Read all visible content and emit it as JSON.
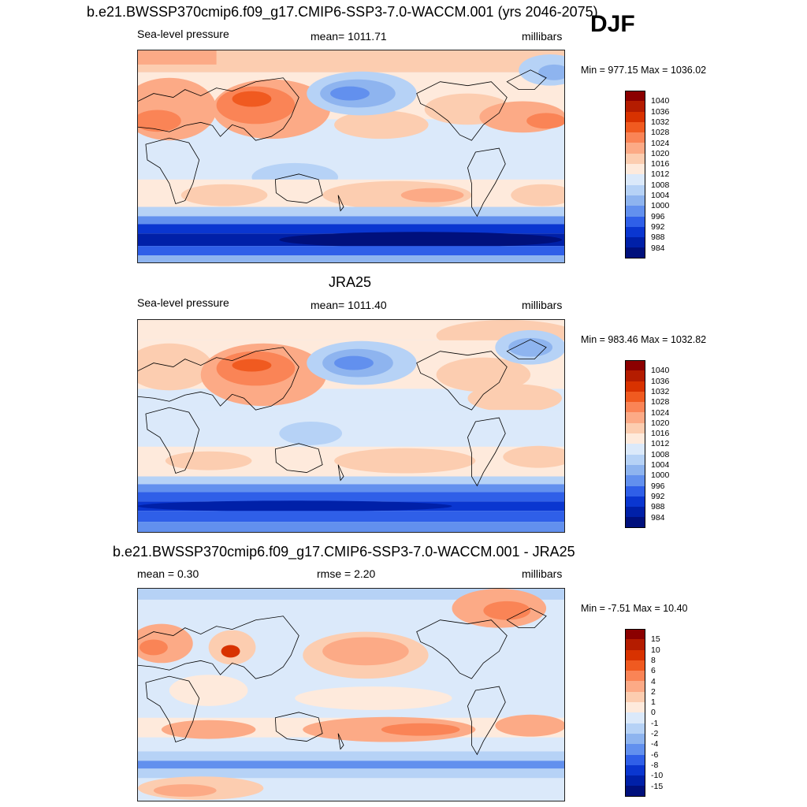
{
  "season": "DJF",
  "colors": {
    "abs_scale": [
      "#8b0000",
      "#b41c00",
      "#d83200",
      "#f05a20",
      "#fa8456",
      "#fcaa86",
      "#fccdb0",
      "#feeadc",
      "#dbe9fa",
      "#b6d2f6",
      "#8eb4ef",
      "#6290ee",
      "#2f5fe8",
      "#0a36d0",
      "#0020a8",
      "#00107c"
    ],
    "diff_scale": [
      "#8b0000",
      "#b41c00",
      "#d83200",
      "#f05a20",
      "#fa8456",
      "#fcaa86",
      "#fccdb0",
      "#feeadc",
      "#dbe9fa",
      "#b6d2f6",
      "#8eb4ef",
      "#6290ee",
      "#2f5fe8",
      "#0a36d0",
      "#0020a8",
      "#00107c"
    ]
  },
  "panels": [
    {
      "title": "b.e21.BWSSP370cmip6.f09_g17.CMIP6-SSP3-7.0-WACCM.001 (yrs 2046-2075)",
      "left_label": "Sea-level pressure",
      "center_label": "mean= 1011.71",
      "right_label": "millibars",
      "minmax": "Min = 977.15 Max = 1036.02",
      "colorbar_labels": [
        "1040",
        "1036",
        "1032",
        "1028",
        "1024",
        "1020",
        "1016",
        "1012",
        "1008",
        "1004",
        "1000",
        "996",
        "992",
        "988",
        "984"
      ]
    },
    {
      "title": "JRA25",
      "left_label": "Sea-level pressure",
      "center_label": "mean= 1011.40",
      "right_label": "millibars",
      "minmax": "Min = 983.46 Max = 1032.82",
      "colorbar_labels": [
        "1040",
        "1036",
        "1032",
        "1028",
        "1024",
        "1020",
        "1016",
        "1012",
        "1008",
        "1004",
        "1000",
        "996",
        "992",
        "988",
        "984"
      ]
    },
    {
      "title": "b.e21.BWSSP370cmip6.f09_g17.CMIP6-SSP3-7.0-WACCM.001 - JRA25",
      "left_label": "mean =   0.30",
      "center_label": "rmse =   2.20",
      "right_label": "millibars",
      "minmax": "Min =  -7.51 Max =  10.40",
      "colorbar_labels": [
        "15",
        "10",
        "8",
        "6",
        "4",
        "2",
        "1",
        "0",
        "-1",
        "-2",
        "-4",
        "-6",
        "-8",
        "-10",
        "-15"
      ]
    }
  ]
}
